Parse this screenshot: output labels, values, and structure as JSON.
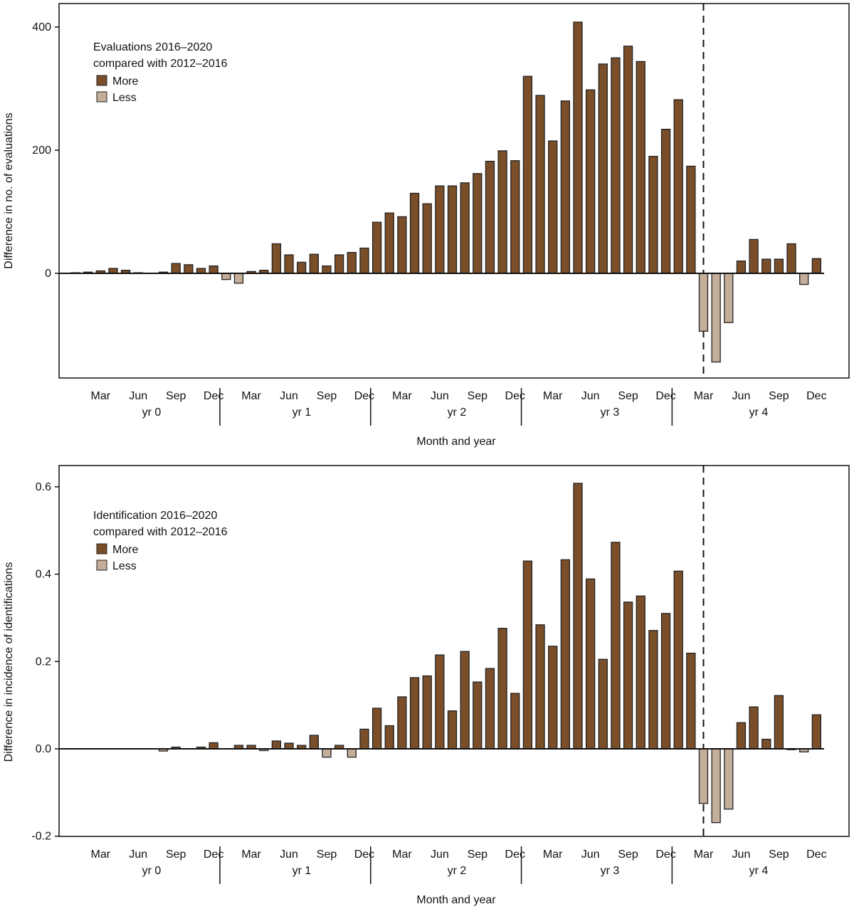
{
  "colors": {
    "more": "#7a4e29",
    "less": "#c4ad99",
    "outline": "#222222"
  },
  "x_axis": {
    "month_ticks": [
      "Mar",
      "Jun",
      "Sep",
      "Dec"
    ],
    "years": [
      "yr 0",
      "yr 1",
      "yr 2",
      "yr 3",
      "yr 4"
    ]
  },
  "chart_data": [
    {
      "type": "bar",
      "legend_title_line1": "Evaluations 2016–2020",
      "legend_title_line2": "compared with 2012–2016",
      "legend": [
        "More",
        "Less"
      ],
      "legend_placement": "top-left",
      "xlabel": "Month and year",
      "ylabel": "Difference in no. of evaluations",
      "ylim": [
        -170,
        435
      ],
      "yticks": [
        "400",
        "200",
        "0"
      ],
      "ytick_values": [
        400,
        200,
        0
      ],
      "reference_line": "dashed vertical line at Mar yr 4",
      "values": [
        1,
        2,
        4,
        8,
        5,
        1,
        0,
        2,
        16,
        14,
        8,
        12,
        -10,
        -16,
        3,
        5,
        48,
        30,
        18,
        31,
        12,
        30,
        34,
        41,
        83,
        98,
        92,
        130,
        113,
        142,
        142,
        147,
        162,
        182,
        199,
        183,
        320,
        289,
        215,
        280,
        408,
        298,
        340,
        350,
        369,
        344,
        190,
        234,
        282,
        174,
        -94,
        -144,
        -80,
        20,
        55,
        23,
        23,
        48,
        -18,
        24
      ]
    },
    {
      "type": "bar",
      "legend_title_line1": "Identification 2016–2020",
      "legend_title_line2": "compared with 2012–2016",
      "legend": [
        "More",
        "Less"
      ],
      "legend_placement": "top-left",
      "xlabel": "Month and year",
      "ylabel": "Difference in incidence of identifications",
      "ylim": [
        -0.2,
        0.64
      ],
      "yticks": [
        "0.6",
        "0.4",
        "0.2",
        "0.0",
        "-0.2"
      ],
      "ytick_values": [
        0.6,
        0.4,
        0.2,
        0.0,
        -0.2
      ],
      "reference_line": "dashed vertical line at Mar yr 4",
      "values": [
        0,
        0,
        0,
        0,
        0,
        0,
        0,
        -0.005,
        0.004,
        0,
        0.004,
        0.014,
        0,
        0.008,
        0.008,
        -0.004,
        0.018,
        0.013,
        0.008,
        0.031,
        -0.019,
        0.008,
        -0.019,
        0.045,
        0.093,
        0.053,
        0.119,
        0.163,
        0.167,
        0.215,
        0.087,
        0.223,
        0.153,
        0.184,
        0.276,
        0.127,
        0.43,
        0.284,
        0.235,
        0.433,
        0.608,
        0.389,
        0.205,
        0.473,
        0.336,
        0.35,
        0.271,
        0.31,
        0.407,
        0.219,
        -0.125,
        -0.169,
        -0.138,
        0.06,
        0.096,
        0.022,
        0.122,
        -0.002,
        -0.007,
        0.078
      ]
    }
  ]
}
